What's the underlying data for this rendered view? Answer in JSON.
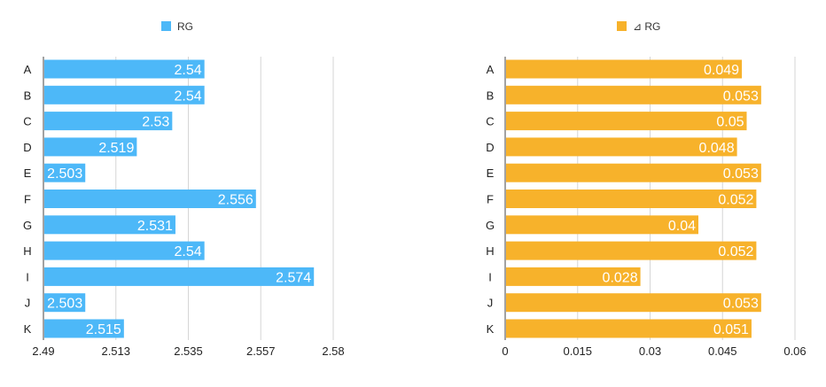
{
  "chart_data": [
    {
      "type": "bar",
      "orientation": "horizontal",
      "categories": [
        "A",
        "B",
        "C",
        "D",
        "E",
        "F",
        "G",
        "H",
        "I",
        "J",
        "K"
      ],
      "series": [
        {
          "name": "RG",
          "values": [
            2.54,
            2.54,
            2.53,
            2.519,
            2.503,
            2.556,
            2.531,
            2.54,
            2.574,
            2.503,
            2.515
          ]
        }
      ],
      "data_labels": [
        "2.54",
        "2.54",
        "2.53",
        "2.519",
        "2.503",
        "2.556",
        "2.531",
        "2.54",
        "2.574",
        "2.503",
        "2.515"
      ],
      "xlim": [
        2.49,
        2.58
      ],
      "xticks": [
        "2.49",
        "2.513",
        "2.535",
        "2.557",
        "2.58"
      ],
      "grid": true,
      "legend_position": "top",
      "color": "#4db8f8"
    },
    {
      "type": "bar",
      "orientation": "horizontal",
      "categories": [
        "A",
        "B",
        "C",
        "D",
        "E",
        "F",
        "G",
        "H",
        "I",
        "J",
        "K"
      ],
      "series": [
        {
          "name": "⊿ RG",
          "values": [
            0.049,
            0.053,
            0.05,
            0.048,
            0.053,
            0.052,
            0.04,
            0.052,
            0.028,
            0.053,
            0.051
          ]
        }
      ],
      "data_labels": [
        "0.049",
        "0.053",
        "0.05",
        "0.048",
        "0.053",
        "0.052",
        "0.04",
        "0.052",
        "0.028",
        "0.053",
        "0.051"
      ],
      "xlim": [
        0,
        0.06
      ],
      "xticks": [
        "0",
        "0.015",
        "0.03",
        "0.045",
        "0.06"
      ],
      "grid": true,
      "legend_position": "top",
      "color": "#f7b22b"
    }
  ]
}
